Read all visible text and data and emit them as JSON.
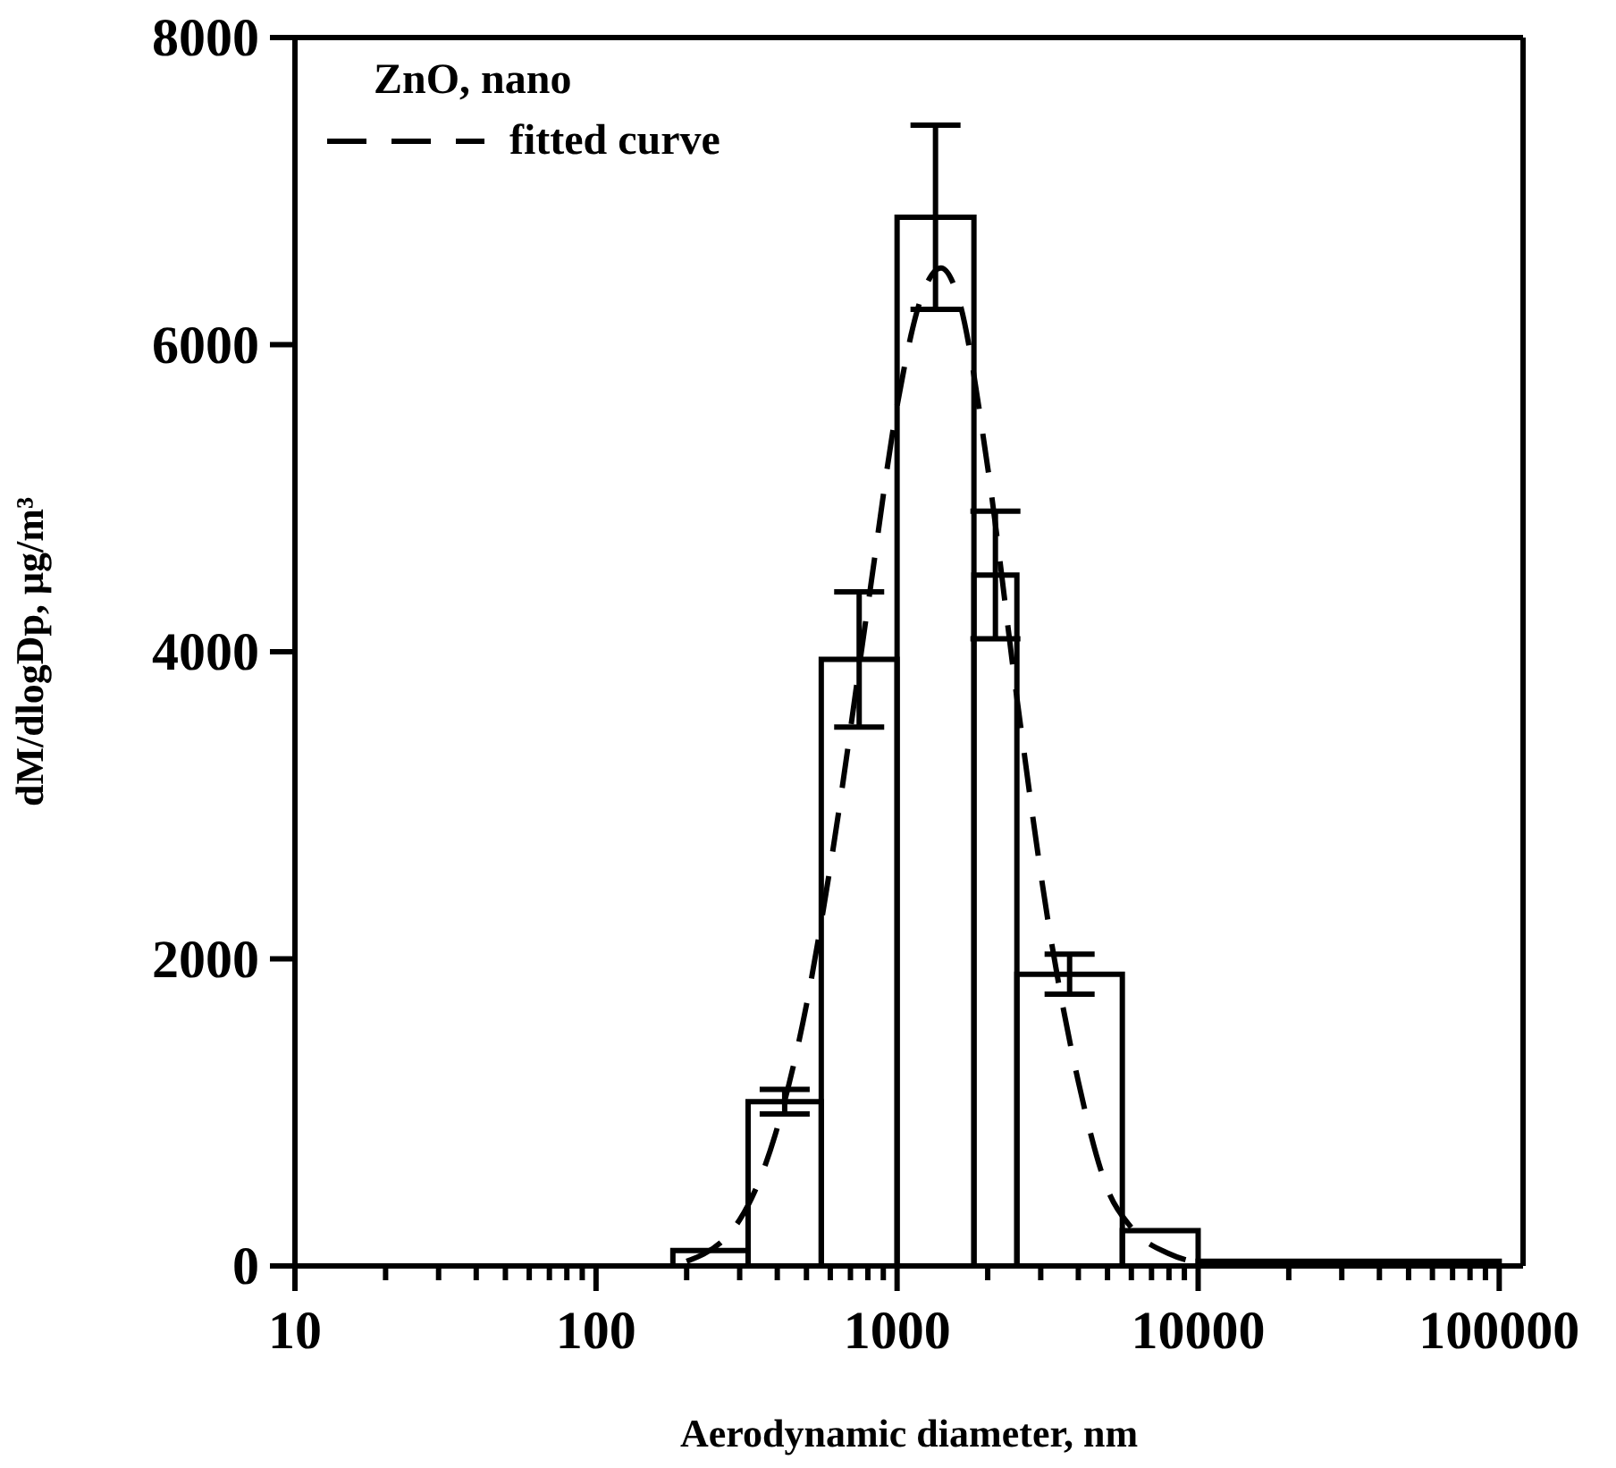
{
  "chart_data": {
    "type": "histogram",
    "xlabel": "Aerodynamic diameter, nm",
    "ylabel": "dM/dlogDp, μg/m³",
    "legend_title": "ZnO, nano",
    "legend": "top left",
    "log": "x",
    "grid": false,
    "xlim": [
      10,
      120000
    ],
    "ylim": [
      0,
      8000
    ],
    "yticks": [
      0,
      2000,
      4000,
      6000,
      8000
    ],
    "xticks": [
      10,
      {
        "value": 20,
        "label": null
      },
      {
        "value": 30,
        "label": null
      },
      {
        "value": 40,
        "label": null
      },
      {
        "value": 50,
        "label": null
      },
      {
        "value": 60,
        "label": null
      },
      {
        "value": 70,
        "label": null
      },
      {
        "value": 80,
        "label": null
      },
      {
        "value": 90,
        "label": null
      },
      100,
      {
        "value": 200,
        "label": null
      },
      {
        "value": 300,
        "label": null
      },
      {
        "value": 400,
        "label": null
      },
      {
        "value": 500,
        "label": null
      },
      {
        "value": 600,
        "label": null
      },
      {
        "value": 700,
        "label": null
      },
      {
        "value": 800,
        "label": null
      },
      {
        "value": 900,
        "label": null
      },
      1000,
      {
        "value": 2000,
        "label": null
      },
      {
        "value": 3000,
        "label": null
      },
      {
        "value": 4000,
        "label": null
      },
      {
        "value": 5000,
        "label": null
      },
      {
        "value": 6000,
        "label": null
      },
      {
        "value": 7000,
        "label": null
      },
      {
        "value": 8000,
        "label": null
      },
      {
        "value": 9000,
        "label": null
      },
      10000,
      {
        "value": 20000,
        "label": null
      },
      {
        "value": 30000,
        "label": null
      },
      {
        "value": 40000,
        "label": null
      },
      {
        "value": 50000,
        "label": null
      },
      {
        "value": 60000,
        "label": null
      },
      {
        "value": 70000,
        "label": null
      },
      {
        "value": 80000,
        "label": null
      },
      {
        "value": 90000,
        "label": null
      },
      100000
    ],
    "series": [
      {
        "color": "#000000",
        "bins": [
          180,
          320,
          560,
          1000,
          1800,
          2500,
          5600,
          10000,
          100000
        ],
        "values": [
          100,
          1070,
          3950,
          6830,
          4500,
          1900,
          230,
          30
        ],
        "errors": [
          null,
          80,
          440,
          600,
          415,
          130,
          null,
          null
        ]
      },
      {
        "type": "line",
        "name": "fitted curve",
        "color": "#000000",
        "line_style": "dashed",
        "marker": "none",
        "x": [
          200,
          300,
          400,
          500,
          600,
          800,
          1000,
          1200,
          1400,
          1600,
          2000,
          2500,
          3200,
          4000,
          5000,
          6000,
          8000,
          10000
        ],
        "values": [
          30,
          300,
          900,
          1700,
          2600,
          4300,
          5600,
          6300,
          6500,
          6300,
          5200,
          3700,
          2200,
          1200,
          500,
          250,
          80,
          20
        ]
      }
    ]
  }
}
